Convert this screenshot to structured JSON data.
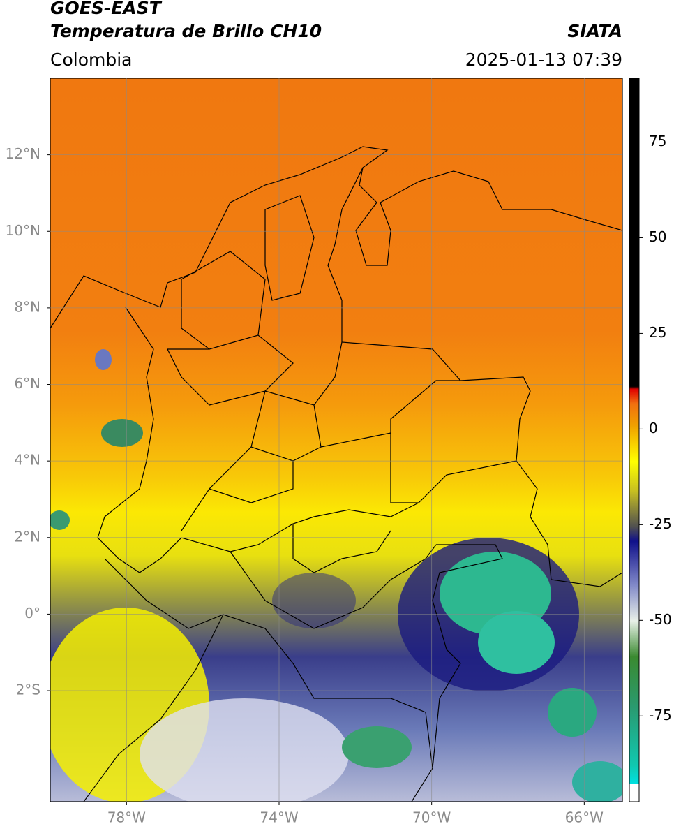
{
  "header": {
    "title": "GOES-EAST",
    "subtitle": "Temperatura de Brillo CH10",
    "source": "SIATA",
    "region": "Colombia",
    "timestamp": "2025-01-13 07:39"
  },
  "map": {
    "xlim": [
      -80,
      -65
    ],
    "ylim": [
      -4.9,
      14
    ],
    "xticks": [
      {
        "value": -78,
        "label": "78°W"
      },
      {
        "value": -74,
        "label": "74°W"
      },
      {
        "value": -70,
        "label": "70°W"
      },
      {
        "value": -66,
        "label": "66°W"
      }
    ],
    "yticks": [
      {
        "value": 12,
        "label": "12°N"
      },
      {
        "value": 10,
        "label": "10°N"
      },
      {
        "value": 8,
        "label": "8°N"
      },
      {
        "value": 6,
        "label": "6°N"
      },
      {
        "value": 4,
        "label": "4°N"
      },
      {
        "value": 2,
        "label": "2°N"
      },
      {
        "value": 0,
        "label": "0°"
      },
      {
        "value": -2,
        "label": "2°S"
      }
    ],
    "grid": true
  },
  "colorbar": {
    "lim": [
      -97.4,
      91.7
    ],
    "ticks": [
      75,
      50,
      25,
      0,
      -25,
      -50,
      -75
    ]
  }
}
